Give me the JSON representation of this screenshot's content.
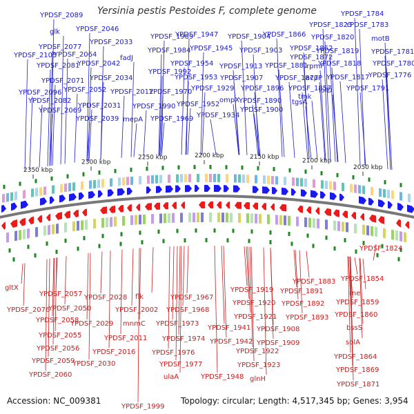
{
  "title": "Yersinia pestis Pestoides F, complete genome",
  "footer": {
    "accession": "Accession: NC_009381",
    "topology": "Topology: circular; Length: 4,517,345 bp; Genes: 3,954"
  },
  "colors": {
    "forward": "#1a1aee",
    "reverse": "#ee1a1a",
    "label_top": "#1a1acc",
    "label_bottom": "#cc1a1a",
    "backbone": "#777777",
    "tick": "#228822"
  },
  "ticks": [
    "2350 kbp",
    "2300 kbp",
    "2250 kbp",
    "2200 kbp",
    "2150 kbp",
    "2100 kbp",
    "2050 kbp"
  ],
  "top_labels": [
    "YPDSF_2089",
    "glk",
    "YPDSF_2046",
    "YPDSF_1989",
    "YPDSF_1947",
    "YPDSF_1904",
    "YPDSF_1866",
    "YPDSF_1823",
    "YPDSF_1784",
    "YPDSF_1783",
    "YPDSF_1820",
    "motB",
    "YPDSF_2033",
    "fadJ",
    "YPDSF_2077",
    "YPDSF_1984",
    "YPDSF_1945",
    "YPDSF_1903",
    "YPDSF_1862",
    "YPDSF_2105",
    "YPDSF_2064",
    "YPDSF_1872",
    "YPDSF_1819",
    "YPDSF_1781",
    "YPDSF_2081",
    "YPDSF_2042",
    "YPDSF_1954",
    "YPDSF_1913",
    "YPDSF_1881",
    "rpmF",
    "YPDSF_1818",
    "YPDSF_1780",
    "YPDSF_1992",
    "YPDSF_2071",
    "YPDSF_2034",
    "YPDSF_1953",
    "YPDSF_1907",
    "YPDSF_1877",
    "acpP",
    "YPDSF_1817",
    "YPDSF_1776",
    "YPDSF_2052",
    "YPDSF_2012",
    "YPDSF_1970",
    "YPDSF_1929",
    "YPDSF_1857",
    "YPDSF_2096",
    "YPDSF_1896",
    "lolD",
    "YPDSF_1791",
    "YPDSF_2082",
    "ompX",
    "YPDSF_1890",
    "tgsA",
    "tmk",
    "YPDSF_2031",
    "YPDSF_1990",
    "YPDSF_1952",
    "YPDSF_2069",
    "YPDSF_1900",
    "YPDSF_1934",
    "mepA",
    "YPDSF_2039",
    "YPDSF_1969"
  ],
  "bottom_labels": [
    "YPDSF_1824",
    "gltX",
    "YPDSF_1854",
    "YPDSF_1883",
    "YPDSF_2057",
    "YPDSF_1967",
    "YPDSF_1919",
    "YPDSF_1891",
    "rne",
    "YPDSF_2076",
    "YPDSF_2028",
    "flk",
    "YPDSF_2050",
    "YPDSF_1968",
    "YPDSF_1920",
    "YPDSF_1892",
    "YPDSF_1859",
    "YPDSF_2002",
    "YPDSF_2058",
    "mnmC",
    "YPDSF_1921",
    "YPDSF_1860",
    "YPDSF_2029",
    "YPDSF_1973",
    "YPDSF_1893",
    "YPDSF_1941",
    "YPDSF_1908",
    "bssS",
    "YPDSF_2055",
    "YPDSF_2011",
    "YPDSF_1974",
    "solA",
    "YPDSF_1942",
    "YPDSF_1909",
    "YPDSF_2016",
    "YPDSF_2056",
    "YPDSF_1976",
    "YPDSF_1922",
    "YPDSF_1864",
    "YPDSF_2059",
    "YPDSF_2030",
    "YPDSF_1977",
    "YPDSF_1923",
    "YPDSF_1869",
    "YPDSF_2060",
    "ulaA",
    "YPDSF_1948",
    "glnH",
    "YPDSF_1871",
    "YPDSF_1999"
  ]
}
